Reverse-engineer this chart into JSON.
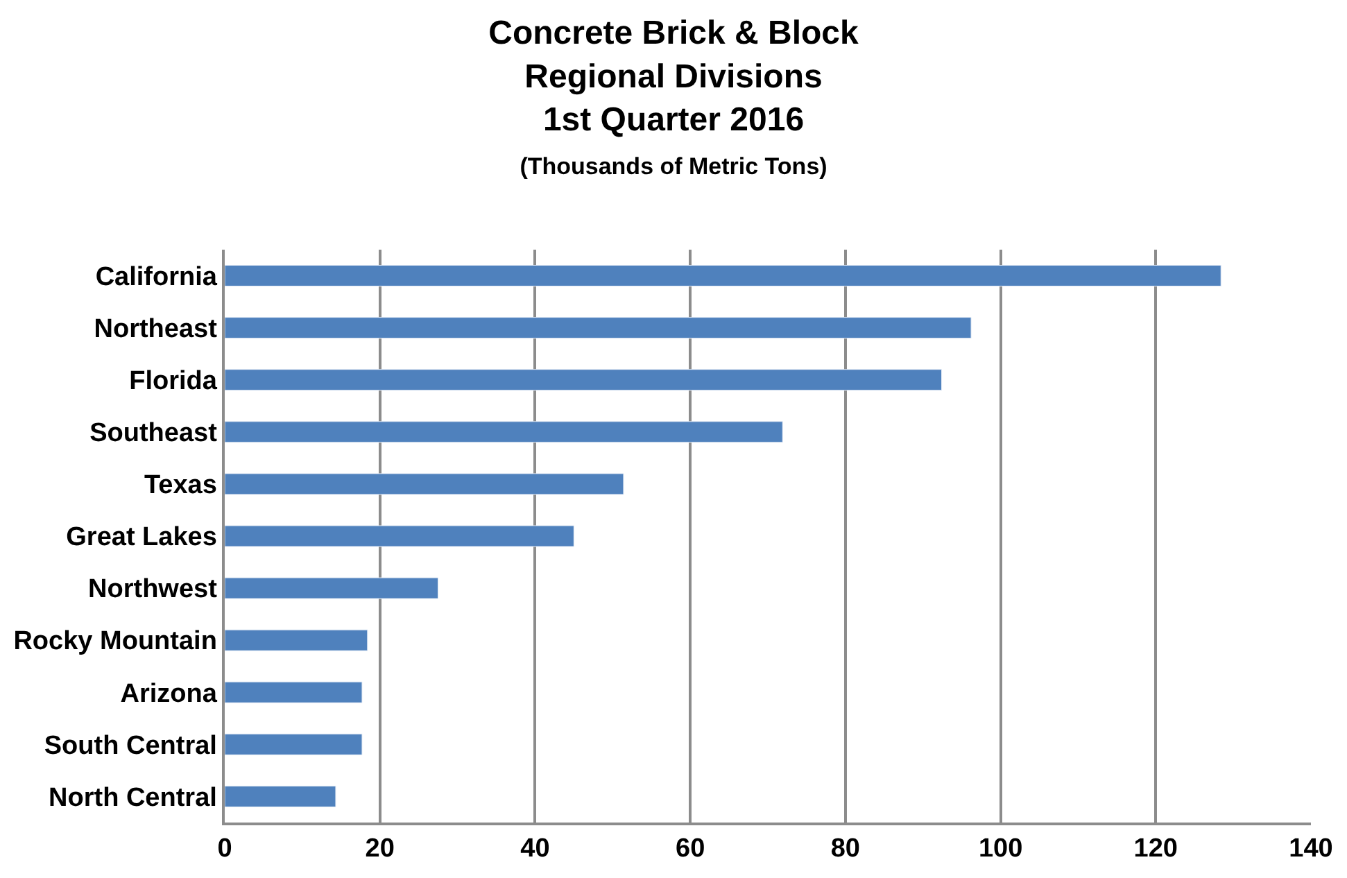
{
  "chart_data": {
    "type": "bar",
    "orientation": "horizontal",
    "title": "Concrete Brick & Block\nRegional Divisions\n1st Quarter 2016",
    "subtitle": "(Thousands of Metric Tons)",
    "categories": [
      "California",
      "Northeast",
      "Florida",
      "Southeast",
      "Texas",
      "Great Lakes",
      "Northwest",
      "Rocky Mountain",
      "Arizona",
      "South Central",
      "North Central"
    ],
    "values": [
      128.4,
      96.2,
      92.4,
      71.9,
      51.4,
      45.0,
      27.5,
      18.4,
      17.7,
      17.7,
      14.3
    ],
    "color": "#4f81bd",
    "xlim": [
      0,
      140
    ],
    "xticks": [
      0,
      20,
      40,
      60,
      80,
      100,
      120,
      140
    ],
    "grid": "x",
    "legend": false
  }
}
